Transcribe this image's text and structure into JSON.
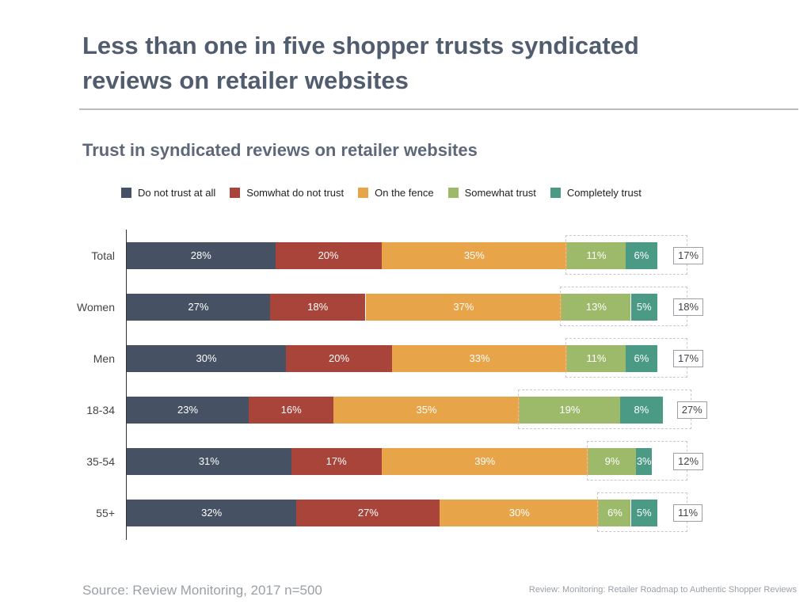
{
  "headline": "Less than one in five shopper trusts syndicated reviews on retailer websites",
  "footer": {
    "source": "Source: Review Monitoring, 2017 n=500",
    "credit": "Review: Monitoring: Retailer Roadmap to Authentic Shopper Reviews"
  },
  "colors": [
    "#465264",
    "#a9443b",
    "#e8a448",
    "#9cba6a",
    "#4a9a86"
  ],
  "chart_data": {
    "type": "bar",
    "orientation": "horizontal",
    "stacked": true,
    "title": "Trust in syndicated reviews on retailer websites",
    "legend_position": "top",
    "categories": [
      "Total",
      "Women",
      "Men",
      "18-34",
      "35-54",
      "55+"
    ],
    "series": [
      {
        "name": "Do not trust at all",
        "values": [
          28,
          27,
          30,
          23,
          31,
          32
        ]
      },
      {
        "name": "Somwhat do not trust",
        "values": [
          20,
          18,
          20,
          16,
          17,
          27
        ]
      },
      {
        "name": "On the fence",
        "values": [
          35,
          37,
          33,
          35,
          39,
          30
        ]
      },
      {
        "name": "Somewhat trust",
        "values": [
          11,
          13,
          11,
          19,
          9,
          6
        ]
      },
      {
        "name": "Completely trust",
        "values": [
          6,
          5,
          6,
          8,
          3,
          5
        ]
      }
    ],
    "trust_totals": [
      "17%",
      "18%",
      "17%",
      "27%",
      "12%",
      "11%"
    ],
    "value_suffix": "%",
    "xlim": [
      0,
      100
    ]
  }
}
